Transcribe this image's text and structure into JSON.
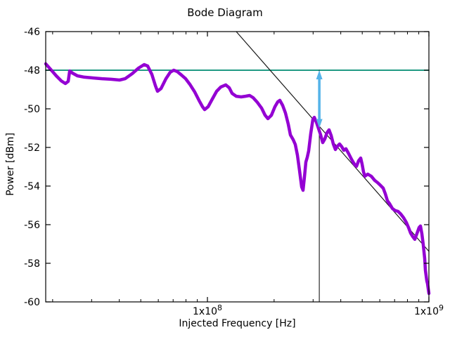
{
  "chart_data": {
    "type": "line",
    "title": "Bode Diagram",
    "xlabel": "Injected Frequency [Hz]",
    "ylabel": "Power [dBm]",
    "x_scale": "log",
    "xlim": [
      18610000.0,
      1000000000.0
    ],
    "ylim": [
      -60,
      -46
    ],
    "grid": false,
    "legend": "none",
    "y_ticks": [
      {
        "value": -46,
        "label": "-46"
      },
      {
        "value": -48,
        "label": "-48"
      },
      {
        "value": -50,
        "label": "-50"
      },
      {
        "value": -52,
        "label": "-52"
      },
      {
        "value": -54,
        "label": "-54"
      },
      {
        "value": -56,
        "label": "-56"
      },
      {
        "value": -58,
        "label": "-58"
      },
      {
        "value": -60,
        "label": "-60"
      }
    ],
    "x_major_ticks": [
      {
        "value": 100000000.0,
        "base": "1x10",
        "exp": "8"
      },
      {
        "value": 1000000000.0,
        "base": "1x10",
        "exp": "9"
      }
    ],
    "x_minor_ticks": [
      20000000.0,
      30000000.0,
      40000000.0,
      50000000.0,
      60000000.0,
      70000000.0,
      80000000.0,
      90000000.0,
      200000000.0,
      300000000.0,
      400000000.0,
      500000000.0,
      600000000.0,
      700000000.0,
      800000000.0,
      900000000.0
    ],
    "series": [
      {
        "name": "reference-level-line",
        "color": "#008C72",
        "width": 1.8,
        "points": [
          [
            18610000.0,
            -48.0
          ],
          [
            1000000000.0,
            -48.0
          ]
        ]
      },
      {
        "name": "marker-frequency-line",
        "color": "#000000",
        "width": 1,
        "points": [
          [
            320000000.0,
            -48.0
          ],
          [
            320000000.0,
            -60.0
          ]
        ]
      },
      {
        "name": "asymptote-line",
        "color": "#1a1a1a",
        "width": 1.2,
        "points": [
          [
            134900000.0,
            -46.0
          ],
          [
            1000000000.0,
            -57.38
          ]
        ]
      },
      {
        "name": "measured-response",
        "color": "#9400d3",
        "width": 4.5,
        "points": [
          [
            18610000.0,
            -47.67
          ],
          [
            19600000.0,
            -47.96
          ],
          [
            20770000.0,
            -48.29
          ],
          [
            21860000.0,
            -48.55
          ],
          [
            22840000.0,
            -48.69
          ],
          [
            23520000.0,
            -48.58
          ],
          [
            23870000.0,
            -48.04
          ],
          [
            24580000.0,
            -48.15
          ],
          [
            25870000.0,
            -48.29
          ],
          [
            27820000.0,
            -48.36
          ],
          [
            30380000.0,
            -48.4
          ],
          [
            33410000.0,
            -48.44
          ],
          [
            36740000.0,
            -48.47
          ],
          [
            40110000.0,
            -48.51
          ],
          [
            42520000.0,
            -48.44
          ],
          [
            45740000.0,
            -48.18
          ],
          [
            48860000.0,
            -47.89
          ],
          [
            51790000.0,
            -47.71
          ],
          [
            53730000.0,
            -47.78
          ],
          [
            56140000.0,
            -48.22
          ],
          [
            58230000.0,
            -48.8
          ],
          [
            59520000.0,
            -49.09
          ],
          [
            61740000.0,
            -48.95
          ],
          [
            64970000.0,
            -48.44
          ],
          [
            67890000.0,
            -48.11
          ],
          [
            70410000.0,
            -48.0
          ],
          [
            73040000.0,
            -48.07
          ],
          [
            76320000.0,
            -48.25
          ],
          [
            79730000.0,
            -48.44
          ],
          [
            83300000.0,
            -48.73
          ],
          [
            87680000.0,
            -49.13
          ],
          [
            91600000.0,
            -49.56
          ],
          [
            95010000.0,
            -49.89
          ],
          [
            97120000.0,
            -50.04
          ],
          [
            100700000.0,
            -49.89
          ],
          [
            105200000.0,
            -49.49
          ],
          [
            110000000.0,
            -49.09
          ],
          [
            114900000.0,
            -48.87
          ],
          [
            120900000.0,
            -48.76
          ],
          [
            125400000.0,
            -48.91
          ],
          [
            129200000.0,
            -49.2
          ],
          [
            134900000.0,
            -49.35
          ],
          [
            142000000.0,
            -49.38
          ],
          [
            148400000.0,
            -49.35
          ],
          [
            155000000.0,
            -49.31
          ],
          [
            160800000.0,
            -49.42
          ],
          [
            168100000.0,
            -49.67
          ],
          [
            175600000.0,
            -49.96
          ],
          [
            182100000.0,
            -50.33
          ],
          [
            187500000.0,
            -50.51
          ],
          [
            194500000.0,
            -50.33
          ],
          [
            201700000.0,
            -49.89
          ],
          [
            207700000.0,
            -49.64
          ],
          [
            212300000.0,
            -49.56
          ],
          [
            218600000.0,
            -49.82
          ],
          [
            225100000.0,
            -50.22
          ],
          [
            231800000.0,
            -50.8
          ],
          [
            236900000.0,
            -51.35
          ],
          [
            243900000.0,
            -51.6
          ],
          [
            249300000.0,
            -51.85
          ],
          [
            254800000.0,
            -52.4
          ],
          [
            260500000.0,
            -53.2
          ],
          [
            266300000.0,
            -54.04
          ],
          [
            270200000.0,
            -54.22
          ],
          [
            274200000.0,
            -53.53
          ],
          [
            278200000.0,
            -52.76
          ],
          [
            282300000.0,
            -52.51
          ],
          [
            286500000.0,
            -52.18
          ],
          [
            292800000.0,
            -51.27
          ],
          [
            299300000.0,
            -50.55
          ],
          [
            303700000.0,
            -50.44
          ],
          [
            310400000.0,
            -50.69
          ],
          [
            317300000.0,
            -51.02
          ],
          [
            324500000.0,
            -51.35
          ],
          [
            331600000.0,
            -51.75
          ],
          [
            339000000.0,
            -51.56
          ],
          [
            346500000.0,
            -51.24
          ],
          [
            354200000.0,
            -51.09
          ],
          [
            362000000.0,
            -51.38
          ],
          [
            370100000.0,
            -51.82
          ],
          [
            378200000.0,
            -52.11
          ],
          [
            386600000.0,
            -51.93
          ],
          [
            395100000.0,
            -51.82
          ],
          [
            403900000.0,
            -51.96
          ],
          [
            412800000.0,
            -52.15
          ],
          [
            422000000.0,
            -52.07
          ],
          [
            434500000.0,
            -52.33
          ],
          [
            447500000.0,
            -52.62
          ],
          [
            460700000.0,
            -52.87
          ],
          [
            470900000.0,
            -52.98
          ],
          [
            481300000.0,
            -52.69
          ],
          [
            492100000.0,
            -52.55
          ],
          [
            499300000.0,
            -52.87
          ],
          [
            506600000.0,
            -53.27
          ],
          [
            514100000.0,
            -53.49
          ],
          [
            529300000.0,
            -53.38
          ],
          [
            549100000.0,
            -53.49
          ],
          [
            569500000.0,
            -53.71
          ],
          [
            586400000.0,
            -53.82
          ],
          [
            603900000.0,
            -53.96
          ],
          [
            621800000.0,
            -54.11
          ],
          [
            635500000.0,
            -54.4
          ],
          [
            649700000.0,
            -54.76
          ],
          [
            664000000.0,
            -54.91
          ],
          [
            683800000.0,
            -55.16
          ],
          [
            704100000.0,
            -55.27
          ],
          [
            725000000.0,
            -55.31
          ],
          [
            746400000.0,
            -55.45
          ],
          [
            768700000.0,
            -55.64
          ],
          [
            791200000.0,
            -55.89
          ],
          [
            808900000.0,
            -56.15
          ],
          [
            826800000.0,
            -56.44
          ],
          [
            845100000.0,
            -56.62
          ],
          [
            863700000.0,
            -56.76
          ],
          [
            882700000.0,
            -56.47
          ],
          [
            902500000.0,
            -56.15
          ],
          [
            915700000.0,
            -56.07
          ],
          [
            929600000.0,
            -56.47
          ],
          [
            943000000.0,
            -57.05
          ],
          [
            957200000.0,
            -57.75
          ],
          [
            964000000.0,
            -58.36
          ],
          [
            978400000.0,
            -58.91
          ],
          [
            985600000.0,
            -59.05
          ],
          [
            1000000000.0,
            -59.56
          ]
        ]
      }
    ],
    "arrow": {
      "name": "delta-arrow",
      "color": "#56b4e9",
      "freq": 320000000.0,
      "from_dbm": -48.0,
      "to_dbm": -51.0,
      "double_headed": true
    }
  }
}
